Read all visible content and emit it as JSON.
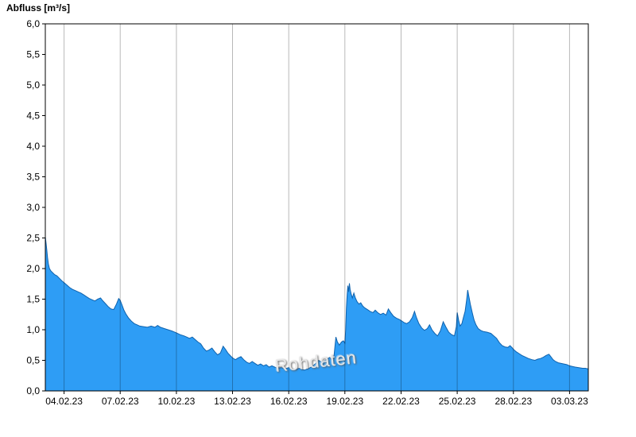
{
  "title": "Abfluss [m³/s]",
  "watermark": "Rohdaten",
  "chart_data": {
    "type": "area",
    "title": "Abfluss [m³/s]",
    "xlabel": "",
    "ylabel": "Abfluss [m³/s]",
    "unit": "m³/s",
    "y_range": [
      0,
      6
    ],
    "x_range": [
      0,
      29
    ],
    "x_unit": "day index, 0 = 03.02.23, 29 = 04.03.23",
    "grid": "vertical-only",
    "legend": "none",
    "colors": {
      "fill": "#2e9df5",
      "line": "#0f62ad",
      "grid": "rgba(0,0,0,0.28)",
      "axis": "#000000",
      "background": "#ffffff"
    },
    "y_ticks": {
      "values": [
        0,
        0.5,
        1,
        1.5,
        2,
        2.5,
        3,
        3.5,
        4,
        4.5,
        5,
        5.5,
        6
      ],
      "labels": [
        "0,0",
        "0,5",
        "1,0",
        "1,5",
        "2,0",
        "2,5",
        "3,0",
        "3,5",
        "4,0",
        "4,5",
        "5,0",
        "5,5",
        "6,0"
      ]
    },
    "x_ticks": {
      "days": [
        1,
        4,
        7,
        10,
        13,
        16,
        19,
        22,
        25,
        28
      ],
      "labels": [
        "04.02.23",
        "07.02.23",
        "10.02.23",
        "13.02.23",
        "16.02.23",
        "19.02.23",
        "22.02.23",
        "25.02.23",
        "28.02.23",
        "03.03.23"
      ]
    },
    "series": [
      {
        "name": "Abfluss Rohdaten",
        "unit": "m³/s",
        "points": [
          [
            0,
            2.52
          ],
          [
            0.04,
            2.42
          ],
          [
            0.08,
            2.3
          ],
          [
            0.12,
            2.18
          ],
          [
            0.16,
            2.08
          ],
          [
            0.22,
            2.0
          ],
          [
            0.3,
            1.96
          ],
          [
            0.4,
            1.93
          ],
          [
            0.5,
            1.9
          ],
          [
            0.62,
            1.88
          ],
          [
            0.75,
            1.84
          ],
          [
            0.88,
            1.8
          ],
          [
            1,
            1.77
          ],
          [
            1.15,
            1.73
          ],
          [
            1.3,
            1.69
          ],
          [
            1.45,
            1.66
          ],
          [
            1.6,
            1.64
          ],
          [
            1.75,
            1.62
          ],
          [
            1.9,
            1.6
          ],
          [
            2.05,
            1.57
          ],
          [
            2.2,
            1.54
          ],
          [
            2.35,
            1.51
          ],
          [
            2.5,
            1.49
          ],
          [
            2.65,
            1.47
          ],
          [
            2.8,
            1.5
          ],
          [
            2.95,
            1.52
          ],
          [
            3.05,
            1.48
          ],
          [
            3.2,
            1.43
          ],
          [
            3.35,
            1.38
          ],
          [
            3.5,
            1.34
          ],
          [
            3.65,
            1.33
          ],
          [
            3.8,
            1.42
          ],
          [
            3.92,
            1.51
          ],
          [
            4,
            1.48
          ],
          [
            4.1,
            1.4
          ],
          [
            4.2,
            1.32
          ],
          [
            4.3,
            1.26
          ],
          [
            4.45,
            1.19
          ],
          [
            4.6,
            1.14
          ],
          [
            4.75,
            1.1
          ],
          [
            4.9,
            1.08
          ],
          [
            5.05,
            1.06
          ],
          [
            5.25,
            1.05
          ],
          [
            5.45,
            1.04
          ],
          [
            5.65,
            1.06
          ],
          [
            5.85,
            1.04
          ],
          [
            6,
            1.07
          ],
          [
            6.15,
            1.04
          ],
          [
            6.35,
            1.02
          ],
          [
            6.55,
            1.0
          ],
          [
            6.75,
            0.98
          ],
          [
            7,
            0.95
          ],
          [
            7.2,
            0.92
          ],
          [
            7.4,
            0.9
          ],
          [
            7.55,
            0.88
          ],
          [
            7.7,
            0.86
          ],
          [
            7.85,
            0.88
          ],
          [
            8,
            0.84
          ],
          [
            8.15,
            0.8
          ],
          [
            8.3,
            0.77
          ],
          [
            8.45,
            0.7
          ],
          [
            8.6,
            0.65
          ],
          [
            8.75,
            0.67
          ],
          [
            8.9,
            0.7
          ],
          [
            9.05,
            0.64
          ],
          [
            9.2,
            0.59
          ],
          [
            9.35,
            0.62
          ],
          [
            9.5,
            0.73
          ],
          [
            9.62,
            0.68
          ],
          [
            9.75,
            0.62
          ],
          [
            9.9,
            0.57
          ],
          [
            10,
            0.54
          ],
          [
            10.15,
            0.51
          ],
          [
            10.3,
            0.54
          ],
          [
            10.45,
            0.56
          ],
          [
            10.6,
            0.51
          ],
          [
            10.75,
            0.47
          ],
          [
            10.9,
            0.45
          ],
          [
            11.05,
            0.48
          ],
          [
            11.2,
            0.45
          ],
          [
            11.35,
            0.42
          ],
          [
            11.5,
            0.44
          ],
          [
            11.65,
            0.41
          ],
          [
            11.8,
            0.43
          ],
          [
            11.95,
            0.39
          ],
          [
            12.1,
            0.41
          ],
          [
            12.25,
            0.39
          ],
          [
            12.4,
            0.37
          ],
          [
            12.6,
            0.38
          ],
          [
            12.8,
            0.36
          ],
          [
            13,
            0.38
          ],
          [
            13.2,
            0.36
          ],
          [
            13.4,
            0.35
          ],
          [
            13.55,
            0.37
          ],
          [
            13.7,
            0.35
          ],
          [
            13.85,
            0.34
          ],
          [
            14,
            0.36
          ],
          [
            14.15,
            0.38
          ],
          [
            14.3,
            0.41
          ],
          [
            14.45,
            0.45
          ],
          [
            14.6,
            0.5
          ],
          [
            14.75,
            0.47
          ],
          [
            14.9,
            0.49
          ],
          [
            15.05,
            0.52
          ],
          [
            15.2,
            0.55
          ],
          [
            15.3,
            0.5
          ],
          [
            15.42,
            0.58
          ],
          [
            15.52,
            0.88
          ],
          [
            15.6,
            0.8
          ],
          [
            15.7,
            0.75
          ],
          [
            15.82,
            0.8
          ],
          [
            15.92,
            0.82
          ],
          [
            16,
            0.78
          ],
          [
            16.04,
            1.0
          ],
          [
            16.08,
            1.35
          ],
          [
            16.12,
            1.58
          ],
          [
            16.16,
            1.72
          ],
          [
            16.2,
            1.62
          ],
          [
            16.24,
            1.76
          ],
          [
            16.28,
            1.66
          ],
          [
            16.34,
            1.58
          ],
          [
            16.4,
            1.52
          ],
          [
            16.48,
            1.6
          ],
          [
            16.56,
            1.52
          ],
          [
            16.65,
            1.46
          ],
          [
            16.75,
            1.42
          ],
          [
            16.85,
            1.44
          ],
          [
            16.95,
            1.39
          ],
          [
            17.05,
            1.36
          ],
          [
            17.2,
            1.33
          ],
          [
            17.35,
            1.3
          ],
          [
            17.5,
            1.28
          ],
          [
            17.62,
            1.32
          ],
          [
            17.75,
            1.28
          ],
          [
            17.9,
            1.25
          ],
          [
            18.05,
            1.27
          ],
          [
            18.2,
            1.24
          ],
          [
            18.32,
            1.34
          ],
          [
            18.45,
            1.28
          ],
          [
            18.6,
            1.22
          ],
          [
            18.75,
            1.19
          ],
          [
            18.9,
            1.17
          ],
          [
            19,
            1.15
          ],
          [
            19.15,
            1.12
          ],
          [
            19.3,
            1.1
          ],
          [
            19.45,
            1.13
          ],
          [
            19.6,
            1.2
          ],
          [
            19.72,
            1.3
          ],
          [
            19.82,
            1.2
          ],
          [
            19.95,
            1.1
          ],
          [
            20.1,
            1.03
          ],
          [
            20.25,
            0.99
          ],
          [
            20.4,
            1.02
          ],
          [
            20.52,
            1.08
          ],
          [
            20.65,
            1.0
          ],
          [
            20.8,
            0.94
          ],
          [
            20.95,
            0.9
          ],
          [
            21.1,
            0.98
          ],
          [
            21.25,
            1.13
          ],
          [
            21.4,
            1.04
          ],
          [
            21.55,
            0.96
          ],
          [
            21.7,
            0.92
          ],
          [
            21.85,
            0.9
          ],
          [
            21.95,
            1.05
          ],
          [
            22,
            1.28
          ],
          [
            22.08,
            1.15
          ],
          [
            22.15,
            1.06
          ],
          [
            22.25,
            1.1
          ],
          [
            22.33,
            1.2
          ],
          [
            22.42,
            1.3
          ],
          [
            22.5,
            1.48
          ],
          [
            22.56,
            1.65
          ],
          [
            22.62,
            1.55
          ],
          [
            22.7,
            1.42
          ],
          [
            22.8,
            1.28
          ],
          [
            22.9,
            1.16
          ],
          [
            23,
            1.08
          ],
          [
            23.12,
            1.02
          ],
          [
            23.25,
            0.99
          ],
          [
            23.4,
            0.97
          ],
          [
            23.6,
            0.96
          ],
          [
            23.8,
            0.94
          ],
          [
            23.95,
            0.9
          ],
          [
            24.1,
            0.86
          ],
          [
            24.25,
            0.79
          ],
          [
            24.4,
            0.74
          ],
          [
            24.55,
            0.72
          ],
          [
            24.7,
            0.71
          ],
          [
            24.82,
            0.74
          ],
          [
            24.95,
            0.7
          ],
          [
            25,
            0.68
          ],
          [
            25.15,
            0.64
          ],
          [
            25.3,
            0.61
          ],
          [
            25.45,
            0.58
          ],
          [
            25.6,
            0.56
          ],
          [
            25.8,
            0.53
          ],
          [
            26,
            0.51
          ],
          [
            26.15,
            0.5
          ],
          [
            26.3,
            0.52
          ],
          [
            26.45,
            0.53
          ],
          [
            26.6,
            0.55
          ],
          [
            26.75,
            0.58
          ],
          [
            26.9,
            0.6
          ],
          [
            27,
            0.56
          ],
          [
            27.12,
            0.51
          ],
          [
            27.25,
            0.48
          ],
          [
            27.4,
            0.46
          ],
          [
            27.55,
            0.45
          ],
          [
            27.7,
            0.44
          ],
          [
            27.85,
            0.43
          ],
          [
            28,
            0.41
          ],
          [
            28.15,
            0.4
          ],
          [
            28.3,
            0.39
          ],
          [
            28.5,
            0.38
          ],
          [
            28.7,
            0.37
          ],
          [
            28.85,
            0.37
          ],
          [
            29,
            0.36
          ]
        ]
      }
    ]
  }
}
